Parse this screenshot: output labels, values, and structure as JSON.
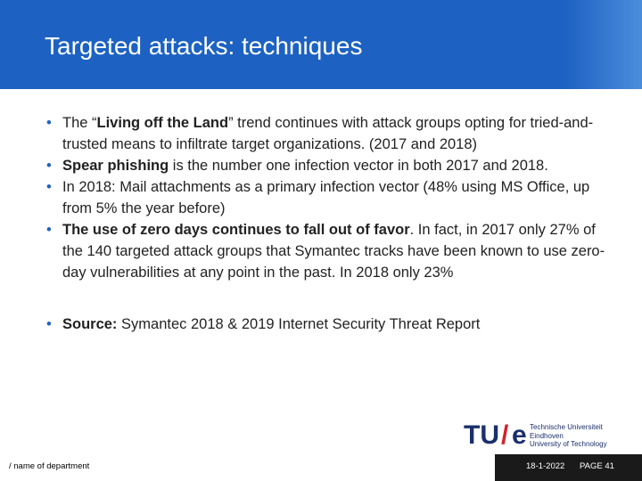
{
  "header": {
    "title": "Targeted attacks: techniques"
  },
  "bullets": [
    {
      "segments": [
        {
          "text": "The “",
          "bold": false
        },
        {
          "text": "Living off the Land",
          "bold": true
        },
        {
          "text": "” trend continues with attack groups opting for tried-and-trusted means to infiltrate target organizations. (2017 and 2018)",
          "bold": false
        }
      ]
    },
    {
      "segments": [
        {
          "text": "Spear phishing",
          "bold": true
        },
        {
          "text": " is the number one infection vector in both 2017 and 2018.",
          "bold": false
        }
      ]
    },
    {
      "segments": [
        {
          "text": "In 2018: Mail attachments as a primary infection vector (48% using MS Office, up from 5% the year before)",
          "bold": false
        }
      ]
    },
    {
      "segments": [
        {
          "text": "The use of zero days continues to fall out of favor",
          "bold": true
        },
        {
          "text": ". In fact, in 2017 only 27% of the 140 targeted attack groups that Symantec tracks have been known to use zero-day vulnerabilities at any point in the past.  In 2018 only 23%",
          "bold": false
        }
      ]
    },
    {
      "segments": [
        {
          "text": "Source:",
          "bold": true
        },
        {
          "text": " Symantec 2018 & 2019 Internet Security Threat Report",
          "bold": false
        }
      ],
      "spaced": true
    }
  ],
  "logo": {
    "mark_left": "TU",
    "slash": "/",
    "mark_right": "e",
    "lines": [
      "Technische Universiteit",
      "Eindhoven",
      "University of Technology"
    ]
  },
  "footer": {
    "department": "/ name of department",
    "date": "18-1-2022",
    "page": "PAGE 41"
  }
}
